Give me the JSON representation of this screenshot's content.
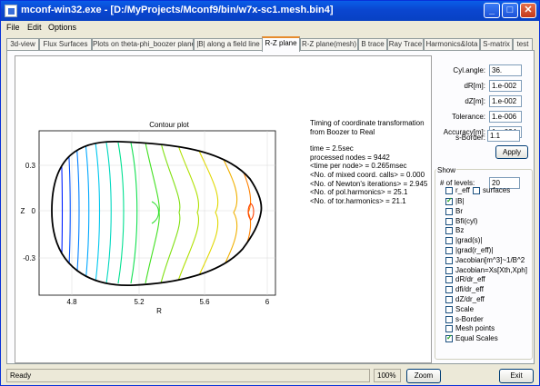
{
  "window": {
    "title": "mconf-win32.exe - [D:/MyProjects/Mconf9/bin/w7x-sc1.mesh.bin4]",
    "minimize": "_",
    "maximize": "□",
    "close": "✕"
  },
  "menu": [
    "File",
    "Edit",
    "Options"
  ],
  "tabs": [
    "3d-view",
    "Flux Surfaces",
    "Plots on theta-phi_boozer plane",
    "|B| along a field line",
    "R-Z plane",
    "R-Z plane(mesh)",
    "B trace",
    "Ray Trace",
    "Harmonics&Iota",
    "S-matrix",
    "test"
  ],
  "active_tab": "R-Z plane",
  "plot": {
    "title": "Contour plot",
    "xlabel": "R",
    "ylabel": "Z",
    "xticks": [
      "4.8",
      "5.2",
      "5.6",
      "6"
    ],
    "yticks": [
      "0.3",
      "0",
      "-0.3"
    ]
  },
  "info": {
    "heading": [
      "Timing of coordinate transformation",
      "from Boozer to Real"
    ],
    "lines": [
      "time = 2.5sec",
      "processed nodes = 9442",
      "<time per node> = 0.265msec",
      "<No. of mixed coord. calls> = 0.000",
      "<No. of Newton's iterations> = 2.945",
      "<No. of pol.harmonics> = 25.1",
      "<No. of tor.harmonics> = 21.1"
    ]
  },
  "params": {
    "cyl_angle": {
      "label": "Cyl.angle:",
      "value": "36."
    },
    "dR": {
      "label": "dR[m]:",
      "value": "1.e-002"
    },
    "dZ": {
      "label": "dZ[m]:",
      "value": "1.e-002"
    },
    "tolerance": {
      "label": "Tolerance:",
      "value": "1.e-006"
    },
    "accuracy": {
      "label": "Accuracy[m]:",
      "value": "1.e-004"
    },
    "s_border": {
      "label": "s-Border:",
      "value": "1.1"
    },
    "apply": "Apply"
  },
  "show": {
    "title": "Show",
    "levels_label": "# of levels:",
    "levels_value": "20",
    "r_eff": {
      "label": "r_eff",
      "checked": false
    },
    "surfaces": {
      "label": "surfaces",
      "checked": false
    },
    "items": [
      {
        "label": "|B|",
        "checked": true
      },
      {
        "label": "Br",
        "checked": false
      },
      {
        "label": "Bfi(cyl)",
        "checked": false
      },
      {
        "label": "Bz",
        "checked": false
      },
      {
        "label": "|grad(s)|",
        "checked": false
      },
      {
        "label": "|grad(r_eff)|",
        "checked": false
      },
      {
        "label": "Jacobian[m^3]~1/B^2",
        "checked": false
      },
      {
        "label": "Jacobian=Xs[Xth,Xph]",
        "checked": false
      },
      {
        "label": "dR/dr_eff",
        "checked": false
      },
      {
        "label": "dfi/dr_eff",
        "checked": false
      },
      {
        "label": "dZ/dr_eff",
        "checked": false
      },
      {
        "label": "Scale",
        "checked": false
      },
      {
        "label": "s-Border",
        "checked": false
      },
      {
        "label": "Mesh points",
        "checked": false
      },
      {
        "label": "Equal Scales",
        "checked": true
      }
    ]
  },
  "status": {
    "text": "Ready",
    "zoom_value": "100%",
    "zoom_button": "Zoom",
    "exit_button": "Exit"
  }
}
